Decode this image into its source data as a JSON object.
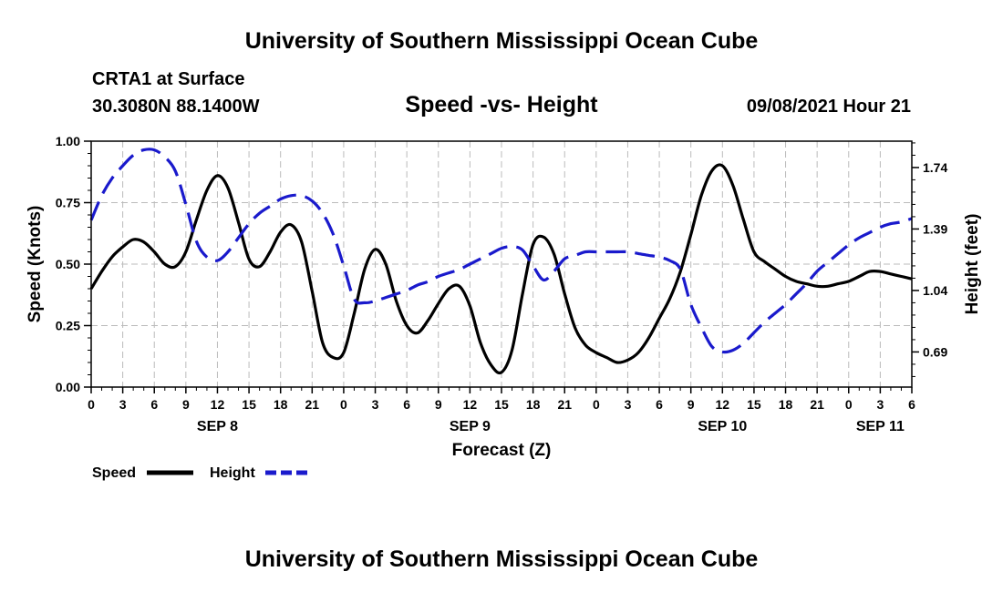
{
  "header": {
    "title_top": "University of Southern Mississippi Ocean Cube",
    "station": "CRTA1 at Surface",
    "coords": "30.3080N  88.1400W",
    "chart_title": "Speed -vs- Height",
    "datetime": "09/08/2021 Hour 21",
    "title_bottom": "University of Southern Mississippi Ocean Cube"
  },
  "colors": {
    "speed": "#000000",
    "height": "#1a1acc",
    "grid": "#bbbbbb"
  },
  "chart_data": {
    "type": "line",
    "title": "Speed -vs- Height",
    "xlabel": "Forecast (Z)",
    "ylabel": "Speed (Knots)",
    "y2label": "Height (feet)",
    "x_unit": "hours since SEP 8 00Z",
    "xlim": [
      0,
      78
    ],
    "ylim": [
      0,
      1
    ],
    "y2lim": [
      0.49,
      1.89
    ],
    "x_ticks": [
      0,
      3,
      6,
      9,
      12,
      15,
      18,
      21,
      24,
      27,
      30,
      33,
      36,
      39,
      42,
      45,
      48,
      51,
      54,
      57,
      60,
      63,
      66,
      69,
      72,
      75,
      78
    ],
    "x_tick_labels": [
      "0",
      "3",
      "6",
      "9",
      "12",
      "15",
      "18",
      "21",
      "0",
      "3",
      "6",
      "9",
      "12",
      "15",
      "18",
      "21",
      "0",
      "3",
      "6",
      "9",
      "12",
      "15",
      "18",
      "21",
      "0",
      "3",
      "6"
    ],
    "date_labels": [
      {
        "x": 12,
        "label": "SEP 8"
      },
      {
        "x": 36,
        "label": "SEP 9"
      },
      {
        "x": 60,
        "label": "SEP 10"
      },
      {
        "x": 75,
        "label": "SEP 11"
      }
    ],
    "y_ticks": [
      0,
      0.25,
      0.5,
      0.75,
      1.0
    ],
    "y_tick_labels": [
      "0.00",
      "0.25",
      "0.50",
      "0.75",
      "1.00"
    ],
    "y2_ticks": [
      0.69,
      1.04,
      1.39,
      1.74
    ],
    "y2_tick_labels": [
      "0.69",
      "1.04",
      "1.39",
      "1.74"
    ],
    "grid": true,
    "legend": {
      "position": "bottom-left",
      "entries": [
        "Speed",
        "Height"
      ]
    },
    "series": [
      {
        "name": "Speed",
        "axis": "left",
        "style": "solid",
        "x": [
          0,
          1,
          2,
          3,
          4,
          5,
          6,
          7,
          8,
          9,
          10,
          11,
          12,
          13,
          14,
          15,
          16,
          17,
          18,
          19,
          20,
          21,
          22,
          23,
          24,
          25,
          26,
          27,
          28,
          29,
          30,
          31,
          32,
          33,
          34,
          35,
          36,
          37,
          38,
          39,
          40,
          41,
          42,
          43,
          44,
          45,
          46,
          47,
          48,
          49,
          50,
          51,
          52,
          53,
          54,
          55,
          56,
          57,
          58,
          59,
          60,
          61,
          62,
          63,
          64,
          65,
          66,
          67,
          68,
          69,
          70,
          71,
          72,
          73,
          74,
          75,
          76,
          77,
          78
        ],
        "values": [
          0.4,
          0.47,
          0.53,
          0.57,
          0.6,
          0.59,
          0.55,
          0.5,
          0.49,
          0.55,
          0.68,
          0.8,
          0.86,
          0.81,
          0.67,
          0.52,
          0.49,
          0.55,
          0.63,
          0.66,
          0.59,
          0.39,
          0.18,
          0.12,
          0.14,
          0.3,
          0.48,
          0.56,
          0.5,
          0.35,
          0.25,
          0.22,
          0.27,
          0.34,
          0.4,
          0.41,
          0.33,
          0.18,
          0.09,
          0.06,
          0.15,
          0.38,
          0.58,
          0.61,
          0.54,
          0.38,
          0.24,
          0.17,
          0.14,
          0.12,
          0.1,
          0.11,
          0.14,
          0.2,
          0.28,
          0.36,
          0.47,
          0.62,
          0.78,
          0.88,
          0.9,
          0.82,
          0.68,
          0.55,
          0.51,
          0.48,
          0.45,
          0.43,
          0.42,
          0.41,
          0.41,
          0.42,
          0.43,
          0.45,
          0.47,
          0.47,
          0.46,
          0.45,
          0.44
        ]
      },
      {
        "name": "Height",
        "axis": "right",
        "style": "dashed",
        "x": [
          0,
          1,
          2,
          3,
          4,
          5,
          6,
          7,
          8,
          9,
          10,
          11,
          12,
          13,
          14,
          15,
          16,
          17,
          18,
          19,
          20,
          21,
          22,
          23,
          24,
          25,
          26,
          27,
          28,
          29,
          30,
          31,
          32,
          33,
          34,
          35,
          36,
          37,
          38,
          39,
          40,
          41,
          42,
          43,
          44,
          45,
          46,
          47,
          48,
          49,
          50,
          51,
          52,
          53,
          54,
          55,
          56,
          57,
          58,
          59,
          60,
          61,
          62,
          63,
          64,
          65,
          66,
          67,
          68,
          69,
          70,
          71,
          72,
          73,
          74,
          75,
          76,
          77,
          78
        ],
        "values": [
          1.44,
          1.58,
          1.68,
          1.75,
          1.81,
          1.84,
          1.84,
          1.8,
          1.72,
          1.53,
          1.32,
          1.23,
          1.21,
          1.26,
          1.34,
          1.42,
          1.48,
          1.52,
          1.56,
          1.58,
          1.58,
          1.55,
          1.48,
          1.36,
          1.18,
          0.99,
          0.97,
          0.98,
          1.0,
          1.02,
          1.04,
          1.07,
          1.09,
          1.12,
          1.14,
          1.16,
          1.19,
          1.22,
          1.25,
          1.28,
          1.29,
          1.27,
          1.18,
          1.1,
          1.15,
          1.22,
          1.24,
          1.26,
          1.26,
          1.26,
          1.26,
          1.26,
          1.25,
          1.24,
          1.23,
          1.21,
          1.16,
          0.96,
          0.83,
          0.72,
          0.69,
          0.7,
          0.74,
          0.8,
          0.86,
          0.91,
          0.96,
          1.02,
          1.08,
          1.15,
          1.2,
          1.25,
          1.3,
          1.34,
          1.37,
          1.4,
          1.42,
          1.43,
          1.45
        ]
      }
    ]
  }
}
